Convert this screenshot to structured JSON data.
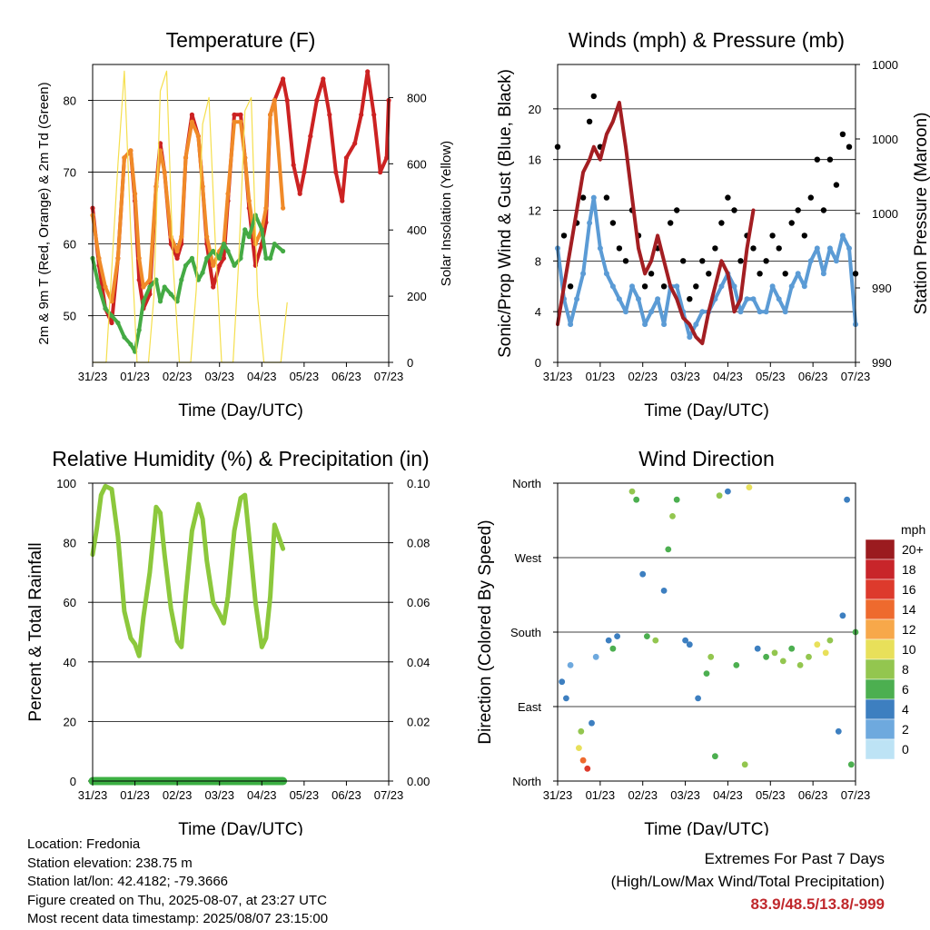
{
  "chart_data": [
    {
      "type": "line",
      "title": "Temperature (F)",
      "xlabel": "Time (Day/UTC)",
      "ylabel": "2m & 9m T (Red, Orange) & 2m Td (Green)",
      "y2label": "Solar Insolation (Yellow)",
      "x_ticks": [
        "31/23",
        "01/23",
        "02/23",
        "03/23",
        "04/23",
        "05/23",
        "06/23",
        "07/23"
      ],
      "xlim": [
        0,
        7
      ],
      "ylim": [
        43.5,
        85
      ],
      "y_ticks": [
        50,
        60,
        70,
        80
      ],
      "y2lim": [
        0,
        900
      ],
      "y2_ticks": [
        0,
        200,
        400,
        600,
        800
      ],
      "grid": "horizontal",
      "series": [
        {
          "name": "2m T",
          "color": "#cc2222",
          "axis": "left",
          "x": [
            0,
            0.15,
            0.3,
            0.45,
            0.6,
            0.75,
            0.9,
            1.0,
            1.1,
            1.2,
            1.35,
            1.5,
            1.6,
            1.7,
            1.85,
            2.0,
            2.1,
            2.2,
            2.35,
            2.5,
            2.6,
            2.7,
            2.85,
            3.0,
            3.1,
            3.2,
            3.35,
            3.5,
            3.6,
            3.7,
            3.85,
            4.0,
            4.1,
            4.2,
            4.3,
            4.5,
            4.6,
            4.75,
            4.9,
            5.0,
            5.15,
            5.3,
            5.45,
            5.6,
            5.75,
            5.9,
            6.0,
            6.2,
            6.35,
            6.5,
            6.65,
            6.8,
            6.95,
            7.0
          ],
          "y": [
            65,
            57,
            51,
            49,
            58,
            72,
            73,
            66,
            55,
            51,
            53,
            68,
            74,
            70,
            60,
            58,
            60,
            72,
            78,
            75,
            68,
            60,
            54,
            57,
            58,
            66,
            78,
            78,
            72,
            65,
            57,
            60,
            63,
            78,
            80,
            83,
            80,
            71,
            67,
            70,
            75,
            80,
            83,
            78,
            70,
            66,
            72,
            74,
            78,
            84,
            78,
            70,
            72,
            80
          ]
        },
        {
          "name": "9m T",
          "color": "#f08a28",
          "axis": "left",
          "x": [
            0,
            0.15,
            0.3,
            0.45,
            0.6,
            0.75,
            0.9,
            1.0,
            1.1,
            1.2,
            1.35,
            1.5,
            1.6,
            1.7,
            1.85,
            2.0,
            2.1,
            2.2,
            2.35,
            2.5,
            2.6,
            2.7,
            2.85,
            3.0,
            3.1,
            3.2,
            3.35,
            3.5,
            3.6,
            3.7,
            3.85,
            4.0,
            4.1,
            4.2,
            4.3,
            4.5
          ],
          "y": [
            64,
            58,
            54,
            52,
            58,
            72,
            73,
            67,
            58,
            54,
            55,
            68,
            73,
            70,
            61,
            59,
            61,
            72,
            77,
            75,
            68,
            61,
            57,
            59,
            60,
            67,
            77,
            77,
            72,
            66,
            60,
            62,
            65,
            78,
            80,
            65
          ]
        },
        {
          "name": "2m Td",
          "color": "#44aa44",
          "axis": "left",
          "x": [
            0,
            0.15,
            0.3,
            0.45,
            0.6,
            0.75,
            0.9,
            1.0,
            1.1,
            1.2,
            1.35,
            1.5,
            1.6,
            1.7,
            1.85,
            2.0,
            2.1,
            2.2,
            2.35,
            2.5,
            2.6,
            2.7,
            2.85,
            3.0,
            3.1,
            3.2,
            3.35,
            3.5,
            3.6,
            3.7,
            3.85,
            4.0,
            4.1,
            4.2,
            4.3,
            4.5
          ],
          "y": [
            58,
            54,
            51,
            50,
            49,
            47,
            46,
            45,
            48,
            52,
            54,
            55,
            52,
            54,
            53,
            52,
            55,
            57,
            58,
            55,
            56,
            58,
            59,
            58,
            60,
            59,
            57,
            58,
            62,
            61,
            64,
            62,
            58,
            58,
            60,
            59
          ]
        },
        {
          "name": "Solar Insolation",
          "color": "#f5df4d",
          "axis": "right",
          "x": [
            0,
            0.2,
            0.32,
            0.45,
            0.6,
            0.75,
            0.9,
            1.05,
            1.2,
            1.32,
            1.45,
            1.6,
            1.75,
            1.9,
            2.05,
            2.2,
            2.32,
            2.45,
            2.6,
            2.75,
            2.9,
            3.05,
            3.2,
            3.32,
            3.45,
            3.6,
            3.75,
            3.9,
            4.05,
            4.2,
            4.32,
            4.45,
            4.6
          ],
          "y": [
            0,
            0,
            0,
            280,
            600,
            880,
            400,
            0,
            0,
            0,
            200,
            820,
            880,
            300,
            0,
            0,
            0,
            220,
            720,
            800,
            360,
            0,
            0,
            0,
            300,
            760,
            800,
            200,
            0,
            0,
            0,
            0,
            180
          ]
        }
      ]
    },
    {
      "type": "scatter",
      "title": "Winds (mph) & Pressure (mb)",
      "xlabel": "Time (Day/UTC)",
      "ylabel": "Sonic/Prop Wind & Gust (Blue, Black)",
      "y2label": "Station Pressure (Maroon)",
      "x_ticks": [
        "31/23",
        "01/23",
        "02/23",
        "03/23",
        "04/23",
        "05/23",
        "06/23",
        "07/23"
      ],
      "xlim": [
        0,
        7
      ],
      "ylim": [
        0,
        23.5
      ],
      "y_ticks": [
        0,
        4,
        8,
        12,
        16,
        20
      ],
      "y2_tick_labels": [
        "990",
        "990",
        "1000",
        "1000",
        "1000"
      ],
      "grid": "horizontal",
      "series": [
        {
          "name": "Gust",
          "color": "#000000",
          "x": [
            0,
            0.15,
            0.3,
            0.45,
            0.6,
            0.75,
            0.85,
            1.0,
            1.15,
            1.3,
            1.45,
            1.6,
            1.75,
            1.9,
            2.05,
            2.2,
            2.35,
            2.5,
            2.65,
            2.8,
            2.95,
            3.1,
            3.25,
            3.4,
            3.55,
            3.7,
            3.85,
            4.0,
            4.15,
            4.3,
            4.45,
            4.6,
            4.75,
            4.9,
            5.05,
            5.2,
            5.35,
            5.5,
            5.65,
            5.8,
            5.95,
            6.1,
            6.25,
            6.4,
            6.55,
            6.7,
            6.85,
            7.0
          ],
          "y": [
            17,
            10,
            6,
            11,
            13,
            19,
            21,
            17,
            13,
            11,
            9,
            8,
            12,
            10,
            6,
            7,
            9,
            6,
            11,
            12,
            8,
            5,
            6,
            8,
            7,
            9,
            11,
            13,
            12,
            8,
            10,
            9,
            7,
            8,
            10,
            9,
            7,
            11,
            12,
            10,
            13,
            16,
            12,
            16,
            14,
            18,
            17,
            7
          ]
        },
        {
          "name": "Wind",
          "color": "#5b9bd5",
          "x": [
            0,
            0.15,
            0.3,
            0.45,
            0.6,
            0.75,
            0.85,
            1.0,
            1.15,
            1.3,
            1.45,
            1.6,
            1.75,
            1.9,
            2.05,
            2.2,
            2.35,
            2.5,
            2.65,
            2.8,
            2.95,
            3.1,
            3.25,
            3.4,
            3.55,
            3.7,
            3.85,
            4.0,
            4.15,
            4.3,
            4.45,
            4.6,
            4.75,
            4.9,
            5.05,
            5.2,
            5.35,
            5.5,
            5.65,
            5.8,
            5.95,
            6.1,
            6.25,
            6.4,
            6.55,
            6.7,
            6.85,
            7.0
          ],
          "y": [
            9,
            5,
            3,
            5,
            7,
            11,
            13,
            9,
            7,
            6,
            5,
            4,
            6,
            5,
            3,
            4,
            5,
            3,
            6,
            6,
            4,
            2,
            3,
            4,
            4,
            5,
            6,
            7,
            6,
            4,
            5,
            5,
            4,
            4,
            6,
            5,
            4,
            6,
            7,
            6,
            8,
            9,
            7,
            9,
            8,
            10,
            9,
            3
          ]
        },
        {
          "name": "Station Pressure",
          "color": "#a31e22",
          "x": [
            0,
            0.15,
            0.3,
            0.45,
            0.6,
            0.75,
            0.85,
            1.0,
            1.15,
            1.3,
            1.45,
            1.6,
            1.75,
            1.9,
            2.05,
            2.2,
            2.35,
            2.5,
            2.65,
            2.8,
            2.95,
            3.1,
            3.25,
            3.4,
            3.55,
            3.7,
            3.85,
            4.0,
            4.15,
            4.3,
            4.45,
            4.6
          ],
          "y": [
            3,
            6,
            9,
            12,
            15,
            16,
            17,
            16,
            18,
            19,
            20.5,
            17,
            13,
            9,
            7,
            8,
            10,
            8,
            6,
            5,
            3.5,
            3,
            2,
            1.5,
            4,
            6,
            8,
            7,
            4,
            5,
            9,
            12
          ]
        }
      ]
    },
    {
      "type": "line",
      "title": "Relative Humidity (%) & Precipitation (in)",
      "xlabel": "Time (Day/UTC)",
      "ylabel": "Percent & Total Rainfall",
      "x_ticks": [
        "31/23",
        "01/23",
        "02/23",
        "03/23",
        "04/23",
        "05/23",
        "06/23",
        "07/23"
      ],
      "xlim": [
        0,
        7
      ],
      "ylim": [
        0,
        100
      ],
      "y_ticks": [
        0,
        20,
        40,
        60,
        80,
        100
      ],
      "y2lim": [
        0,
        0.1
      ],
      "y2_tick_labels": [
        "0.00",
        "0.02",
        "0.04",
        "0.06",
        "0.08",
        "0.10"
      ],
      "grid": "horizontal",
      "series": [
        {
          "name": "Relative Humidity",
          "color": "#8cc83c",
          "x": [
            0,
            0.1,
            0.2,
            0.3,
            0.45,
            0.6,
            0.75,
            0.9,
            1.0,
            1.1,
            1.2,
            1.35,
            1.5,
            1.6,
            1.7,
            1.85,
            2.0,
            2.1,
            2.2,
            2.35,
            2.5,
            2.6,
            2.7,
            2.85,
            3.0,
            3.1,
            3.2,
            3.35,
            3.5,
            3.6,
            3.7,
            3.85,
            4.0,
            4.1,
            4.2,
            4.3,
            4.5
          ],
          "y": [
            76,
            85,
            96,
            99,
            98,
            82,
            57,
            48,
            46,
            42,
            55,
            70,
            92,
            90,
            76,
            58,
            47,
            45,
            62,
            84,
            93,
            88,
            74,
            60,
            56,
            53,
            62,
            84,
            95,
            96,
            82,
            60,
            45,
            48,
            62,
            86,
            78
          ]
        },
        {
          "name": "Precipitation",
          "color": "#3cb043",
          "x": [
            0,
            4.5
          ],
          "y": [
            0,
            0
          ]
        }
      ]
    },
    {
      "type": "scatter",
      "title": "Wind Direction",
      "xlabel": "Time (Day/UTC)",
      "ylabel": "Direction (Colored By Speed)",
      "x_ticks": [
        "31/23",
        "01/23",
        "02/23",
        "03/23",
        "04/23",
        "05/23",
        "06/23",
        "07/23"
      ],
      "xlim": [
        0,
        7
      ],
      "y_tick_labels": [
        "North",
        "East",
        "South",
        "West",
        "North"
      ],
      "ylim": [
        0,
        360
      ],
      "grid": "horizontal",
      "colorbar_title": "mph",
      "colorbar_labels": [
        "20+",
        "18",
        "16",
        "14",
        "12",
        "10",
        "8",
        "6",
        "4",
        "2",
        "0"
      ],
      "colorbar_colors": [
        "#9b1b1f",
        "#c8252a",
        "#dd3a2c",
        "#ee6a2e",
        "#f7a84a",
        "#e8e05a",
        "#93c64f",
        "#4caf50",
        "#3d7fc0",
        "#6ea9de",
        "#bde3f5"
      ],
      "points": [
        {
          "x": 0.1,
          "dir": 120,
          "speed": 4
        },
        {
          "x": 0.2,
          "dir": 100,
          "speed": 3
        },
        {
          "x": 0.3,
          "dir": 140,
          "speed": 2
        },
        {
          "x": 0.5,
          "dir": 40,
          "speed": 10
        },
        {
          "x": 0.6,
          "dir": 25,
          "speed": 14
        },
        {
          "x": 0.7,
          "dir": 15,
          "speed": 16
        },
        {
          "x": 0.55,
          "dir": 60,
          "speed": 8
        },
        {
          "x": 0.8,
          "dir": 70,
          "speed": 4
        },
        {
          "x": 0.9,
          "dir": 150,
          "speed": 2
        },
        {
          "x": 1.2,
          "dir": 170,
          "speed": 4
        },
        {
          "x": 1.3,
          "dir": 160,
          "speed": 5
        },
        {
          "x": 1.4,
          "dir": 175,
          "speed": 3
        },
        {
          "x": 1.75,
          "dir": 350,
          "speed": 7
        },
        {
          "x": 1.85,
          "dir": 340,
          "speed": 6
        },
        {
          "x": 2.0,
          "dir": 250,
          "speed": 3
        },
        {
          "x": 2.1,
          "dir": 175,
          "speed": 5
        },
        {
          "x": 2.3,
          "dir": 170,
          "speed": 7
        },
        {
          "x": 2.5,
          "dir": 230,
          "speed": 4
        },
        {
          "x": 2.6,
          "dir": 280,
          "speed": 6
        },
        {
          "x": 2.7,
          "dir": 320,
          "speed": 8
        },
        {
          "x": 2.8,
          "dir": 340,
          "speed": 6
        },
        {
          "x": 3.0,
          "dir": 170,
          "speed": 4
        },
        {
          "x": 3.1,
          "dir": 165,
          "speed": 3
        },
        {
          "x": 3.3,
          "dir": 100,
          "speed": 4
        },
        {
          "x": 3.5,
          "dir": 130,
          "speed": 6
        },
        {
          "x": 3.6,
          "dir": 150,
          "speed": 8
        },
        {
          "x": 3.7,
          "dir": 30,
          "speed": 5
        },
        {
          "x": 3.8,
          "dir": 345,
          "speed": 7
        },
        {
          "x": 4.0,
          "dir": 350,
          "speed": 3
        },
        {
          "x": 4.2,
          "dir": 140,
          "speed": 5
        },
        {
          "x": 4.4,
          "dir": 20,
          "speed": 8
        },
        {
          "x": 4.5,
          "dir": 355,
          "speed": 10
        },
        {
          "x": 4.7,
          "dir": 160,
          "speed": 4
        },
        {
          "x": 4.9,
          "dir": 150,
          "speed": 5
        },
        {
          "x": 5.1,
          "dir": 155,
          "speed": 7
        },
        {
          "x": 5.3,
          "dir": 145,
          "speed": 8
        },
        {
          "x": 5.5,
          "dir": 160,
          "speed": 6
        },
        {
          "x": 5.7,
          "dir": 140,
          "speed": 8
        },
        {
          "x": 5.9,
          "dir": 150,
          "speed": 7
        },
        {
          "x": 6.1,
          "dir": 165,
          "speed": 9
        },
        {
          "x": 6.3,
          "dir": 155,
          "speed": 10
        },
        {
          "x": 6.4,
          "dir": 170,
          "speed": 8
        },
        {
          "x": 6.6,
          "dir": 60,
          "speed": 4
        },
        {
          "x": 6.7,
          "dir": 200,
          "speed": 3
        },
        {
          "x": 6.8,
          "dir": 340,
          "speed": 4
        },
        {
          "x": 6.9,
          "dir": 20,
          "speed": 6
        },
        {
          "x": 7.0,
          "dir": 180,
          "speed": 5
        }
      ]
    }
  ],
  "info": {
    "location": "Location: Fredonia",
    "elevation": "Station elevation: 238.75 m",
    "latlon": "Station lat/lon: 42.4182; -79.3666",
    "created": "Figure created on Thu, 2025-08-07, at 23:27 UTC",
    "recent": "Most recent data timestamp: 2025/08/07 23:15:00"
  },
  "extremes": {
    "title": "Extremes For Past 7 Days",
    "subtitle": "(High/Low/Max Wind/Total Precipitation)",
    "values": "83.9/48.5/13.8/-999"
  }
}
